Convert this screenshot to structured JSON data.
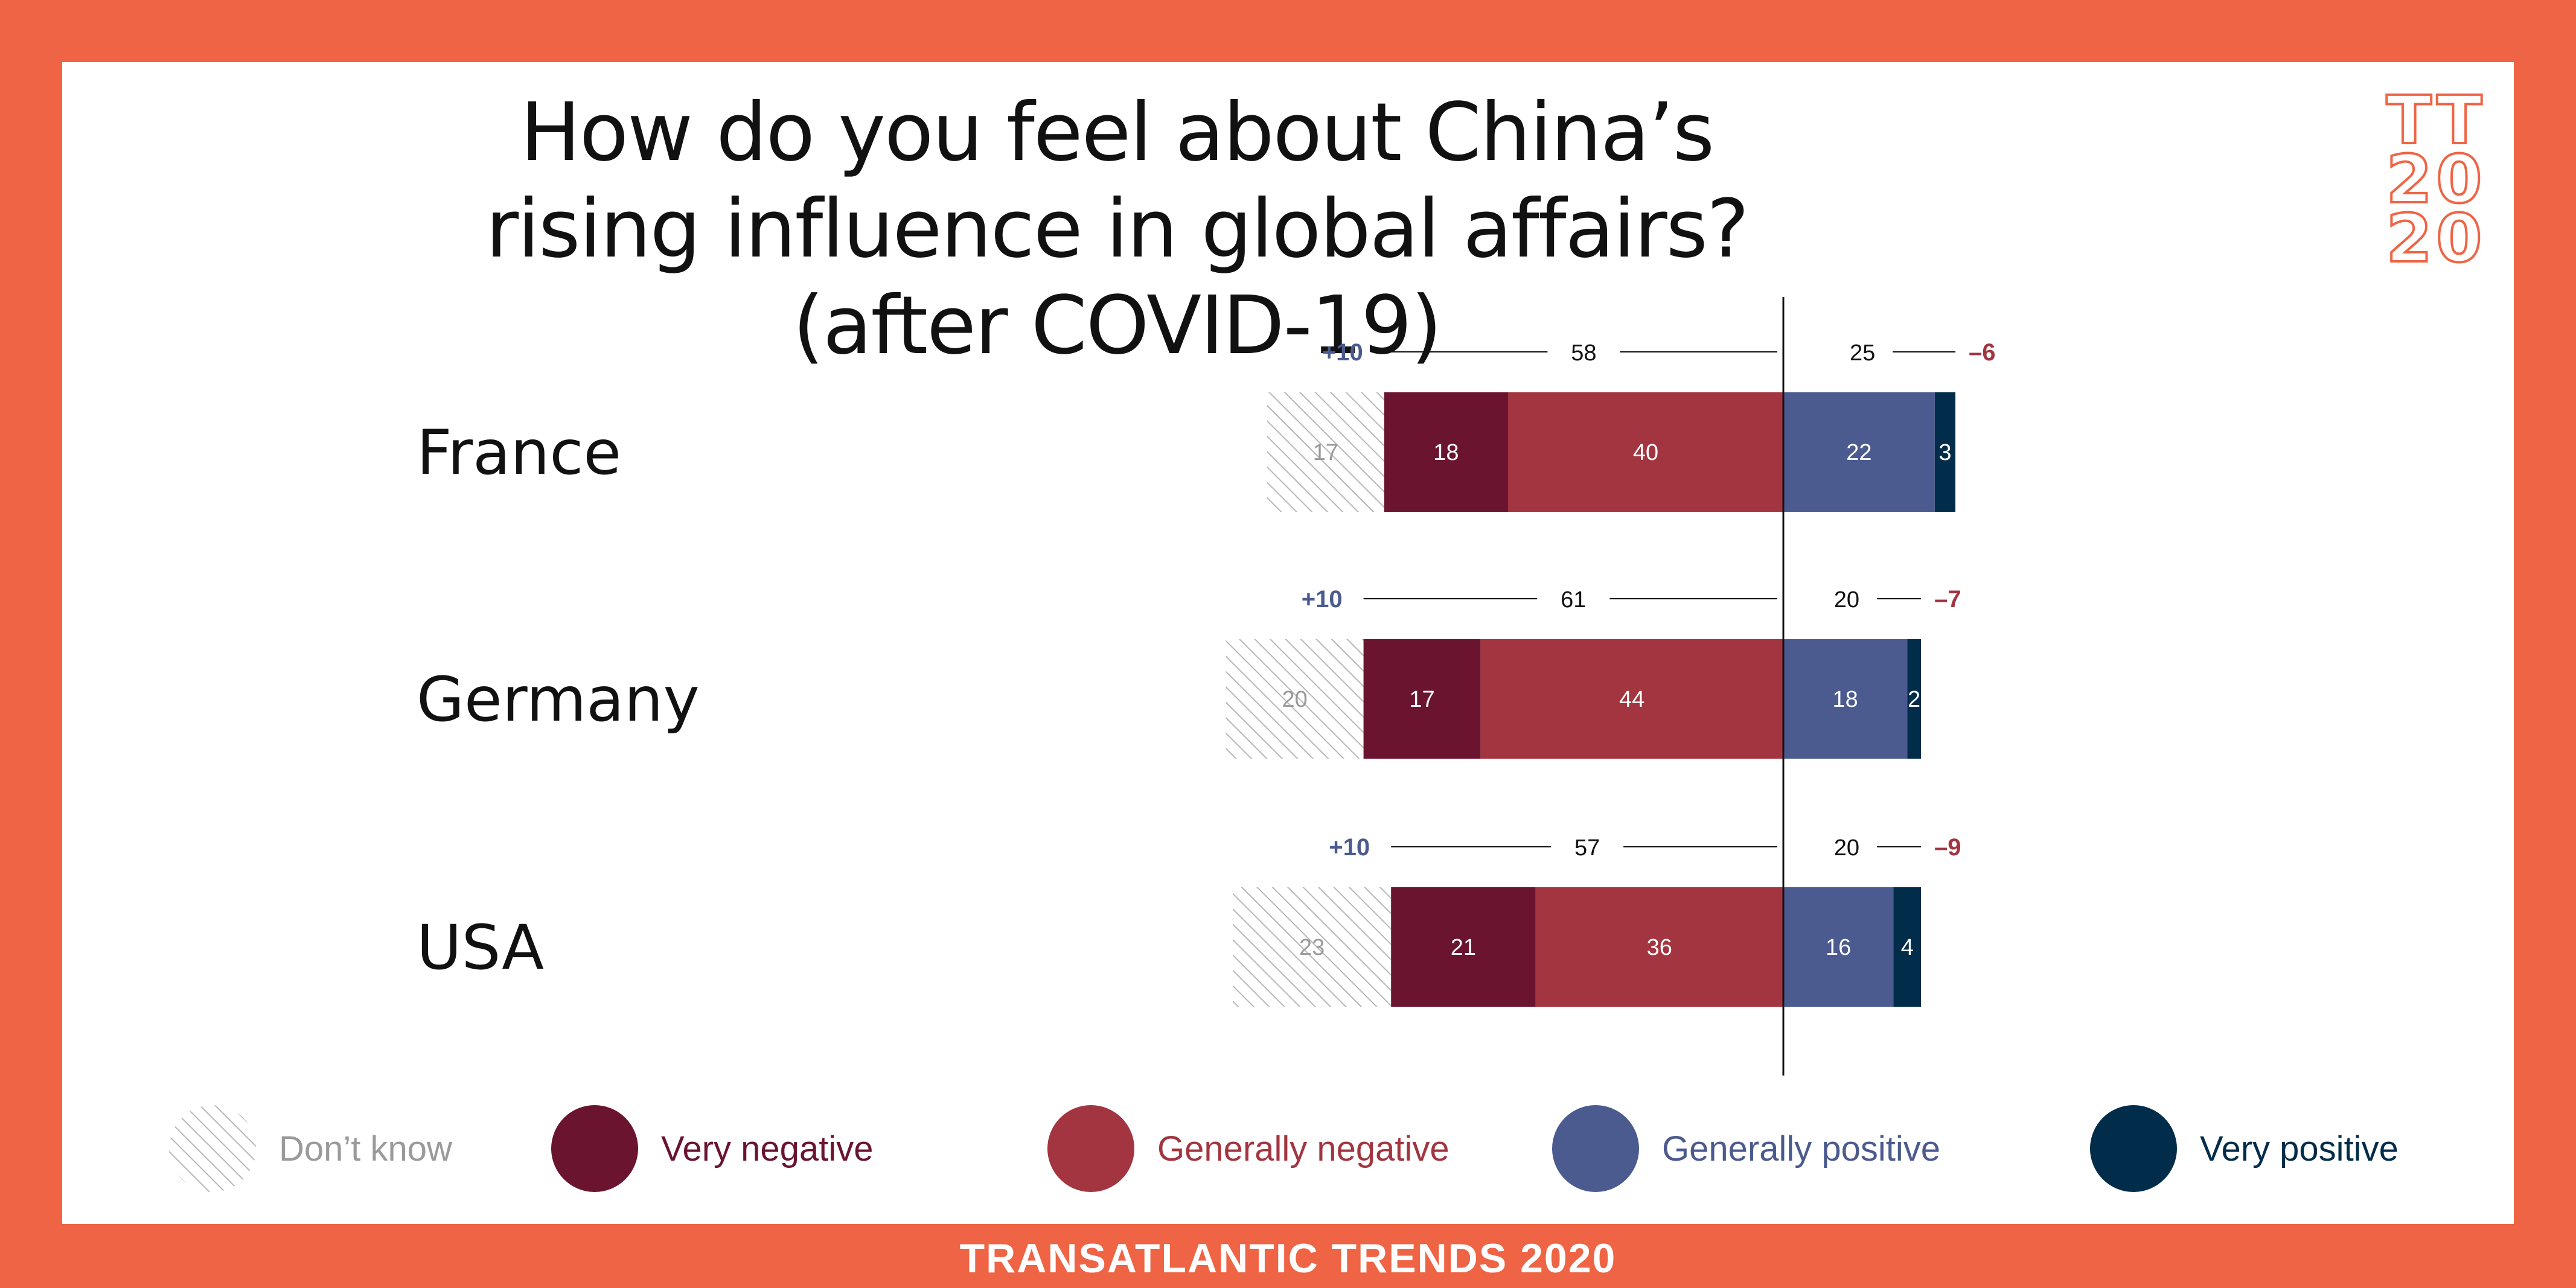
{
  "title": "How do you feel about China’s rising influence in global affairs? (after COVID-19)",
  "logo": {
    "line1": "TT",
    "line2": "20",
    "line3": "20"
  },
  "footer": "TRANSATLANTIC TRENDS 2020",
  "colors": {
    "frame": "#ef6444",
    "dont_know": "#b8b8b8",
    "very_negative": "#6a1430",
    "generally_negative": "#a23540",
    "generally_positive": "#4b5a8f",
    "very_positive": "#012d4a"
  },
  "chart_data": {
    "type": "bar",
    "orientation": "horizontal-diverging-stacked",
    "title": "How do you feel about China’s rising influence in global affairs? (after COVID-19)",
    "categories": [
      "France",
      "Germany",
      "USA"
    ],
    "series": [
      {
        "name": "Don’t know",
        "values": [
          17,
          20,
          23
        ]
      },
      {
        "name": "Very negative",
        "values": [
          18,
          17,
          21
        ]
      },
      {
        "name": "Generally negative",
        "values": [
          40,
          44,
          36
        ]
      },
      {
        "name": "Generally positive",
        "values": [
          22,
          18,
          16
        ]
      },
      {
        "name": "Very positive",
        "values": [
          3,
          2,
          4
        ]
      }
    ],
    "negative_totals": [
      "58",
      "61",
      "57"
    ],
    "positive_totals": [
      "25",
      "20",
      "20"
    ],
    "change_negative": [
      "+10",
      "+10",
      "+10"
    ],
    "change_positive": [
      "–6",
      "–7",
      "–9"
    ],
    "legend_position": "bottom"
  }
}
